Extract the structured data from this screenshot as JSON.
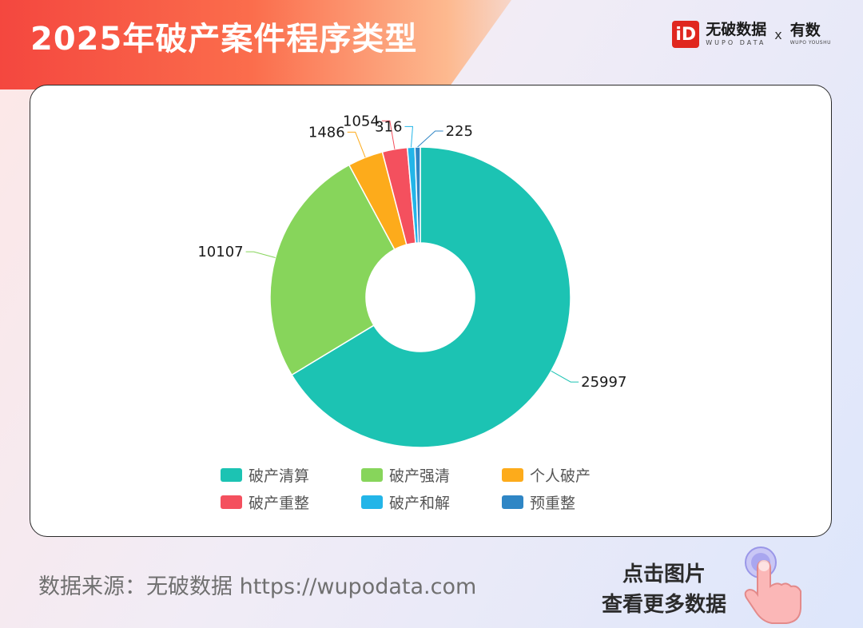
{
  "header": {
    "title": "2025年破产案件程序类型",
    "brand_logo_text": "iD",
    "brand_name": "无破数据",
    "brand_sub": "WUPO DATA",
    "brand_separator": "x",
    "partner_name": "有数",
    "partner_sub": "WUPO YOUSHU"
  },
  "chart_data": {
    "type": "pie",
    "donut": true,
    "categories": [
      "破产清算",
      "破产强清",
      "个人破产",
      "破产重整",
      "破产和解",
      "预重整"
    ],
    "values": [
      25997,
      10107,
      1486,
      1054,
      316,
      225
    ],
    "colors": [
      "#1cc3b3",
      "#87d55b",
      "#fdab1b",
      "#f4505e",
      "#23b5e8",
      "#2f86c5"
    ],
    "data_labels": [
      "25997",
      "10107",
      "1486",
      "1054",
      "316",
      "225"
    ],
    "legend_position": "bottom",
    "legend": [
      [
        "破产清算",
        "破产强清",
        "个人破产"
      ],
      [
        "破产重整",
        "破产和解",
        "预重整"
      ]
    ]
  },
  "footer": {
    "source": "数据来源：无破数据 https://wupodata.com",
    "cta_line1": "点击图片",
    "cta_line2": "查看更多数据"
  }
}
